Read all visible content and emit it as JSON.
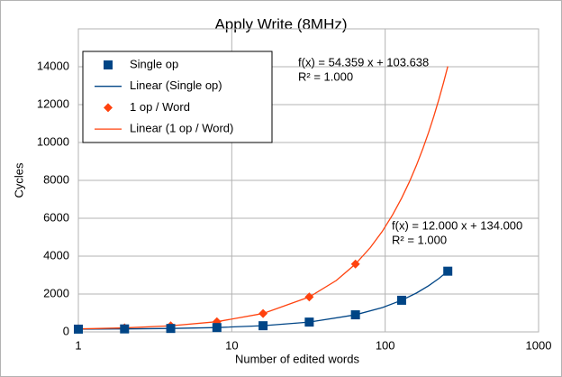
{
  "chart_data": {
    "type": "scatter",
    "title": "Apply Write (8MHz)",
    "x_label": "Number of edited words",
    "y_label": "Cycles",
    "x_scale": "log",
    "xlim": [
      1,
      1000
    ],
    "xticks": [
      1,
      10,
      100,
      1000
    ],
    "ylim": [
      0,
      16000
    ],
    "yticks": [
      0,
      2000,
      4000,
      6000,
      8000,
      10000,
      12000,
      14000
    ],
    "grid": true,
    "legend": "upper left",
    "series": [
      {
        "name": "Single op",
        "style": "square",
        "color": "#004586",
        "x": [
          1,
          2,
          4,
          8,
          16,
          32,
          64,
          128,
          256
        ],
        "values": [
          146,
          158,
          182,
          230,
          326,
          518,
          902,
          1670,
          3206
        ]
      },
      {
        "name": "Linear (Single op)",
        "style": "line",
        "color": "#004586",
        "x": [
          1,
          2,
          4,
          8,
          16,
          32,
          64,
          96,
          128,
          160,
          192,
          224,
          256
        ],
        "values": [
          146,
          158,
          182,
          230,
          326,
          518,
          902,
          1286,
          1670,
          2054,
          2438,
          2822,
          3206
        ]
      },
      {
        "name": "1 op / Word",
        "style": "diamond",
        "color": "#ff420e",
        "x": [
          1,
          2,
          4,
          8,
          16,
          32,
          64
        ],
        "values": [
          158,
          212,
          321,
          538,
          973,
          1843,
          3583
        ]
      },
      {
        "name": "Linear (1 op / Word)",
        "style": "line",
        "color": "#ff420e",
        "x": [
          1,
          2,
          4,
          8,
          16,
          32,
          48,
          64,
          80,
          96,
          112,
          128,
          144,
          160,
          176,
          192,
          208,
          224,
          240,
          256
        ],
        "values": [
          158,
          212,
          321,
          538,
          973,
          1843,
          2713,
          3583,
          4452,
          5322,
          6192,
          7062,
          7931,
          8801,
          9671,
          10540,
          11410,
          12280,
          13150,
          14020
        ]
      }
    ],
    "annotations": [
      "f(x) = 54.359 x + 103.638",
      "R² = 1.000",
      "f(x) = 12.000 x + 134.000",
      "R² = 1.000"
    ]
  }
}
